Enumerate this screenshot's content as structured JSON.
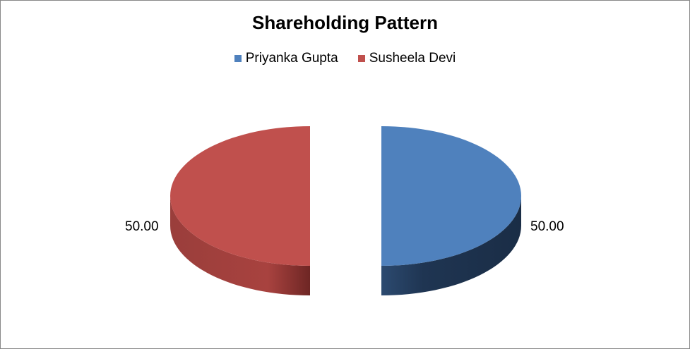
{
  "chart_data": {
    "type": "pie",
    "style": "3d-exploded",
    "title": "Shareholding Pattern",
    "legend_position": "top",
    "series": [
      {
        "name": "Priyanka Gupta",
        "value": 50.0,
        "label": "50.00",
        "color": "#4F81BD",
        "side_color": "#1F3552"
      },
      {
        "name": "Susheela Devi",
        "value": 50.0,
        "label": "50.00",
        "color": "#C0504D",
        "side_color": "#7A2A28"
      }
    ]
  }
}
